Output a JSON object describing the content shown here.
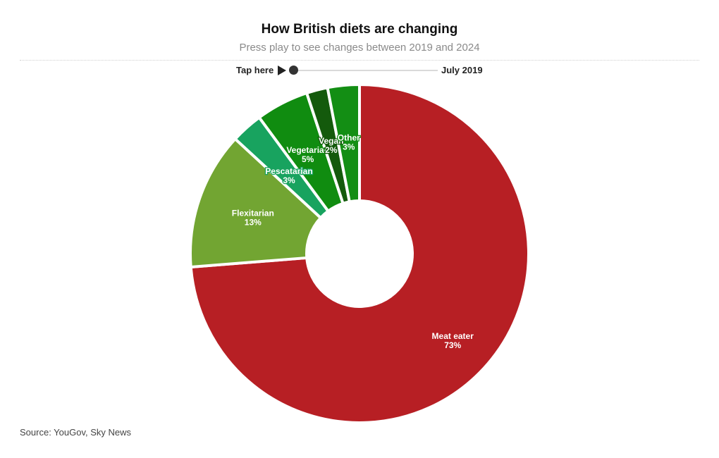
{
  "header": {
    "title": "How British diets are changing",
    "subtitle": "Press play to see changes between 2019 and 2024"
  },
  "player": {
    "tap_label": "Tap here",
    "play_icon": "play-icon",
    "progress": 0,
    "date_label": "July 2019"
  },
  "footer": {
    "source": "Source: YouGov, Sky News"
  },
  "chart_data": {
    "type": "pie",
    "donut": true,
    "title": "How British diets are changing",
    "subtitle": "Press play to see changes between 2019 and 2024",
    "slices": [
      {
        "label": "Meat eater",
        "value": 73,
        "display": "73%",
        "color": "#b71f24"
      },
      {
        "label": "Flexitarian",
        "value": 13,
        "display": "13%",
        "color": "#72a532"
      },
      {
        "label": "Pescatarian",
        "value": 3,
        "display": "3%",
        "color": "#18a35f"
      },
      {
        "label": "Vegetarian",
        "value": 5,
        "display": "5%",
        "color": "#108c10"
      },
      {
        "label": "Vegan",
        "value": 2,
        "display": "2%",
        "color": "#145a0c"
      },
      {
        "label": "Other",
        "value": 3,
        "display": "3%",
        "color": "#138e14"
      }
    ]
  }
}
